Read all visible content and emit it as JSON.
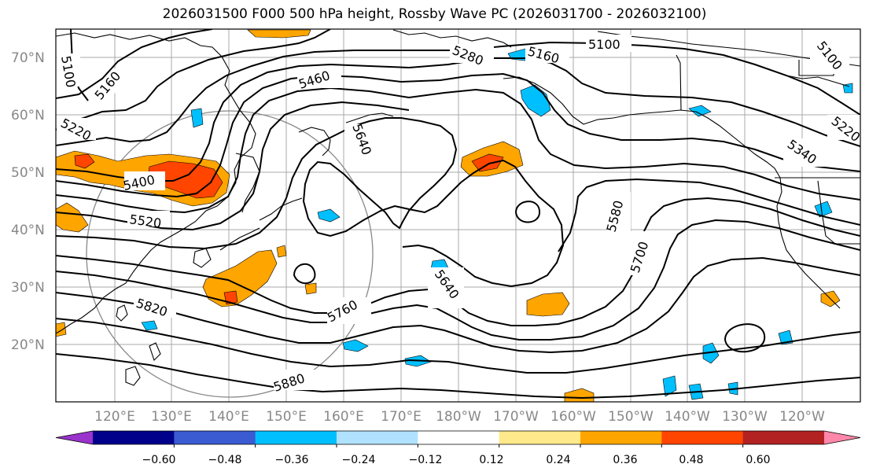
{
  "title": "2026031500 F000 500 hPa height, Rossby Wave PC (2026031700 - 2026032100)",
  "lat_labels": [
    "70°N",
    "60°N",
    "50°N",
    "40°N",
    "30°N",
    "20°N"
  ],
  "lon_labels": [
    "120°E",
    "130°E",
    "140°E",
    "150°E",
    "160°E",
    "170°E",
    "180°W",
    "170°W",
    "160°W",
    "150°W",
    "140°W",
    "130°W",
    "120°W"
  ],
  "contour_labels": [
    "5100",
    "5160",
    "5220",
    "5280",
    "5340",
    "5400",
    "5460",
    "5520",
    "5580",
    "5640",
    "5700",
    "5760",
    "5820",
    "5880"
  ],
  "colorbar": {
    "ticks": [
      "−0.60",
      "−0.48",
      "−0.36",
      "−0.24",
      "−0.12",
      "0.12",
      "0.24",
      "0.36",
      "0.48",
      "0.60"
    ],
    "colors": [
      "#9933cc",
      "#00008b",
      "#3a5bd1",
      "#00bfff",
      "#b0e2ff",
      "#ffffff",
      "#ffe98a",
      "#ffa500",
      "#ff4500",
      "#b22222",
      "#ff88aa"
    ]
  }
}
